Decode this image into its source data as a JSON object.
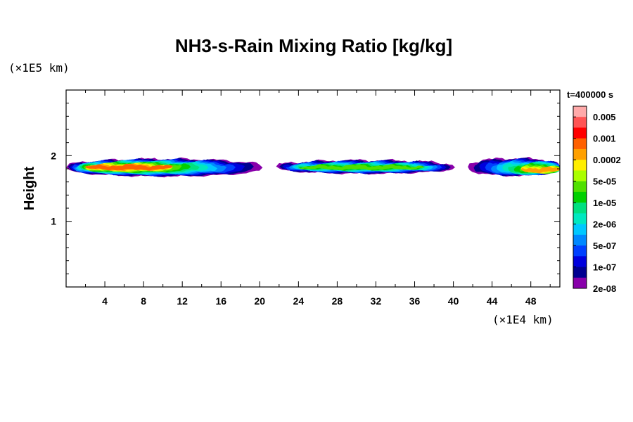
{
  "chart_data": {
    "type": "heatmap",
    "title": "NH3-s-Rain Mixing Ratio [kg/kg]",
    "ylabel": "Height",
    "x_unit": "(×1E4 km)",
    "y_unit": "(×1E5 km)",
    "time_label": "t=400000 s",
    "xlim": [
      0,
      51
    ],
    "ylim": [
      0,
      3
    ],
    "x_ticks": [
      4,
      8,
      12,
      16,
      20,
      24,
      28,
      32,
      36,
      40,
      44,
      48
    ],
    "x_tick_labels": [
      "4",
      "8",
      "12",
      "16",
      "20",
      "24",
      "28",
      "32",
      "36",
      "40",
      "44",
      "48"
    ],
    "x_minor_step": 2,
    "y_ticks": [
      1,
      2
    ],
    "y_tick_labels": [
      "1",
      "2"
    ],
    "y_minor_step": 0.2,
    "colorbar": {
      "labels": [
        "0.005",
        "0.001",
        "0.0002",
        "5e-05",
        "1e-05",
        "2e-06",
        "5e-07",
        "1e-07",
        "2e-08"
      ],
      "colors_top_to_bottom": [
        "#ffaaaa",
        "#ff5555",
        "#ff0000",
        "#ff6000",
        "#ffa000",
        "#ffee00",
        "#aaff00",
        "#50e000",
        "#00d000",
        "#00e080",
        "#00e8c0",
        "#00c8ff",
        "#0088ff",
        "#0040ff",
        "#0000dd",
        "#000090",
        "#8800aa"
      ]
    },
    "blobs": [
      {
        "x0": 0,
        "x1": 20.3,
        "y": 1.82,
        "half_thickness": 0.13,
        "peak_level": 13,
        "peak_x": [
          2,
          11
        ],
        "peak_y": 1.82
      },
      {
        "x0": 21.7,
        "x1": 40.2,
        "y": 1.83,
        "half_thickness": 0.1,
        "peak_level": 9,
        "peak_x": [
          24,
          37
        ],
        "peak_y": 1.82
      },
      {
        "x0": 41.5,
        "x1": 51,
        "y": 1.83,
        "half_thickness": 0.13,
        "peak_level": 12,
        "peak_x": [
          47,
          51
        ],
        "peak_y": 1.78
      }
    ]
  }
}
